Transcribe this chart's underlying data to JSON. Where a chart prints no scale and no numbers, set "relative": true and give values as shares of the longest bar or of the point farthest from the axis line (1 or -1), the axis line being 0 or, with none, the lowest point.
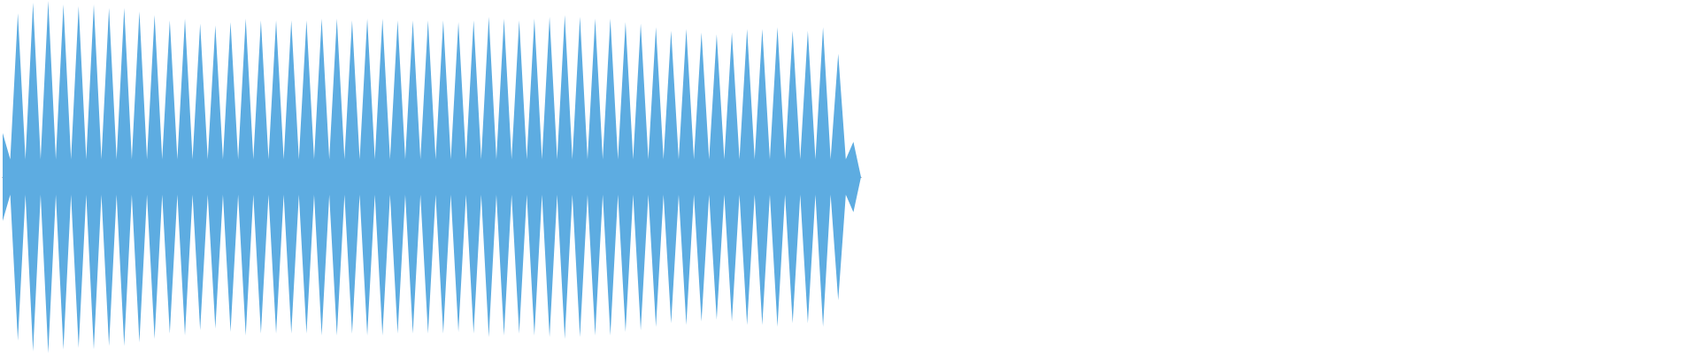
{
  "chart_data": {
    "type": "area",
    "relative": true,
    "categories": [
      null,
      null,
      null,
      null,
      null,
      null,
      null,
      null,
      null,
      null,
      null,
      null,
      null,
      null,
      null,
      null,
      null,
      null,
      null,
      null,
      null,
      null,
      null,
      null,
      null,
      null,
      null,
      null,
      null,
      null,
      null,
      null,
      null,
      null,
      null,
      null,
      null,
      null,
      null,
      null,
      null,
      null,
      null,
      null,
      null,
      null,
      null,
      null,
      null,
      null,
      null,
      null,
      null,
      null,
      null,
      null,
      null,
      null,
      null,
      null,
      null,
      null,
      null,
      null,
      null,
      null,
      null,
      null,
      null,
      null,
      null,
      null,
      null,
      null,
      null,
      null,
      null,
      null,
      null,
      null,
      null,
      null,
      null,
      null,
      null,
      null,
      null,
      null,
      null,
      null,
      null,
      null,
      null,
      null,
      null,
      null,
      null,
      null,
      null,
      null,
      null,
      null,
      null,
      null,
      null,
      null,
      null,
      null,
      null,
      null,
      null,
      null,
      null,
      null
    ],
    "series": [
      {
        "color": "#5dace1",
        "values": [
          0.25,
          0.1,
          0.93,
          0.1,
          0.99,
          0.1,
          1,
          0.1,
          0.98,
          0.1,
          0.97,
          0.1,
          0.98,
          0.1,
          0.96,
          0.1,
          0.96,
          0.1,
          0.94,
          0.1,
          0.92,
          0.1,
          0.89,
          0.1,
          0.9,
          0.1,
          0.87,
          0.1,
          0.86,
          0.1,
          0.88,
          0.1,
          0.9,
          0.1,
          0.89,
          0.1,
          0.89,
          0.1,
          0.89,
          0.1,
          0.89,
          0.1,
          0.9,
          0.1,
          0.9,
          0.1,
          0.89,
          0.1,
          0.9,
          0.1,
          0.9,
          0.1,
          0.89,
          0.1,
          0.89,
          0.1,
          0.89,
          0.1,
          0.89,
          0.1,
          0.88,
          0.1,
          0.89,
          0.1,
          0.91,
          0.1,
          0.9,
          0.1,
          0.89,
          0.1,
          0.9,
          0.1,
          0.91,
          0.1,
          0.92,
          0.1,
          0.91,
          0.1,
          0.9,
          0.1,
          0.9,
          0.1,
          0.88,
          0.1,
          0.87,
          0.1,
          0.85,
          0.1,
          0.83,
          0.1,
          0.84,
          0.1,
          0.82,
          0.1,
          0.81,
          0.1,
          0.82,
          0.1,
          0.84,
          0.1,
          0.84,
          0.1,
          0.85,
          0.1,
          0.83,
          0.1,
          0.83,
          0.1,
          0.85,
          0.1,
          0.7,
          0.1,
          0.2,
          0
        ]
      },
      {
        "color": "#5dace1",
        "values": [
          -0.25,
          -0.1,
          -0.93,
          -0.1,
          -0.99,
          -0.1,
          -1,
          -0.1,
          -0.98,
          -0.1,
          -0.97,
          -0.1,
          -0.98,
          -0.1,
          -0.96,
          -0.1,
          -0.96,
          -0.1,
          -0.94,
          -0.1,
          -0.92,
          -0.1,
          -0.89,
          -0.1,
          -0.9,
          -0.1,
          -0.87,
          -0.1,
          -0.86,
          -0.1,
          -0.88,
          -0.1,
          -0.9,
          -0.1,
          -0.89,
          -0.1,
          -0.89,
          -0.1,
          -0.89,
          -0.1,
          -0.89,
          -0.1,
          -0.9,
          -0.1,
          -0.9,
          -0.1,
          -0.89,
          -0.1,
          -0.9,
          -0.1,
          -0.9,
          -0.1,
          -0.89,
          -0.1,
          -0.89,
          -0.1,
          -0.89,
          -0.1,
          -0.89,
          -0.1,
          -0.88,
          -0.1,
          -0.89,
          -0.1,
          -0.91,
          -0.1,
          -0.9,
          -0.1,
          -0.89,
          -0.1,
          -0.9,
          -0.1,
          -0.91,
          -0.1,
          -0.92,
          -0.1,
          -0.91,
          -0.1,
          -0.9,
          -0.1,
          -0.9,
          -0.1,
          -0.88,
          -0.1,
          -0.87,
          -0.1,
          -0.85,
          -0.1,
          -0.83,
          -0.1,
          -0.84,
          -0.1,
          -0.82,
          -0.1,
          -0.81,
          -0.1,
          -0.82,
          -0.1,
          -0.84,
          -0.1,
          -0.84,
          -0.1,
          -0.85,
          -0.1,
          -0.83,
          -0.1,
          -0.83,
          -0.1,
          -0.85,
          -0.1,
          -0.7,
          -0.1,
          -0.2,
          0
        ]
      }
    ]
  }
}
